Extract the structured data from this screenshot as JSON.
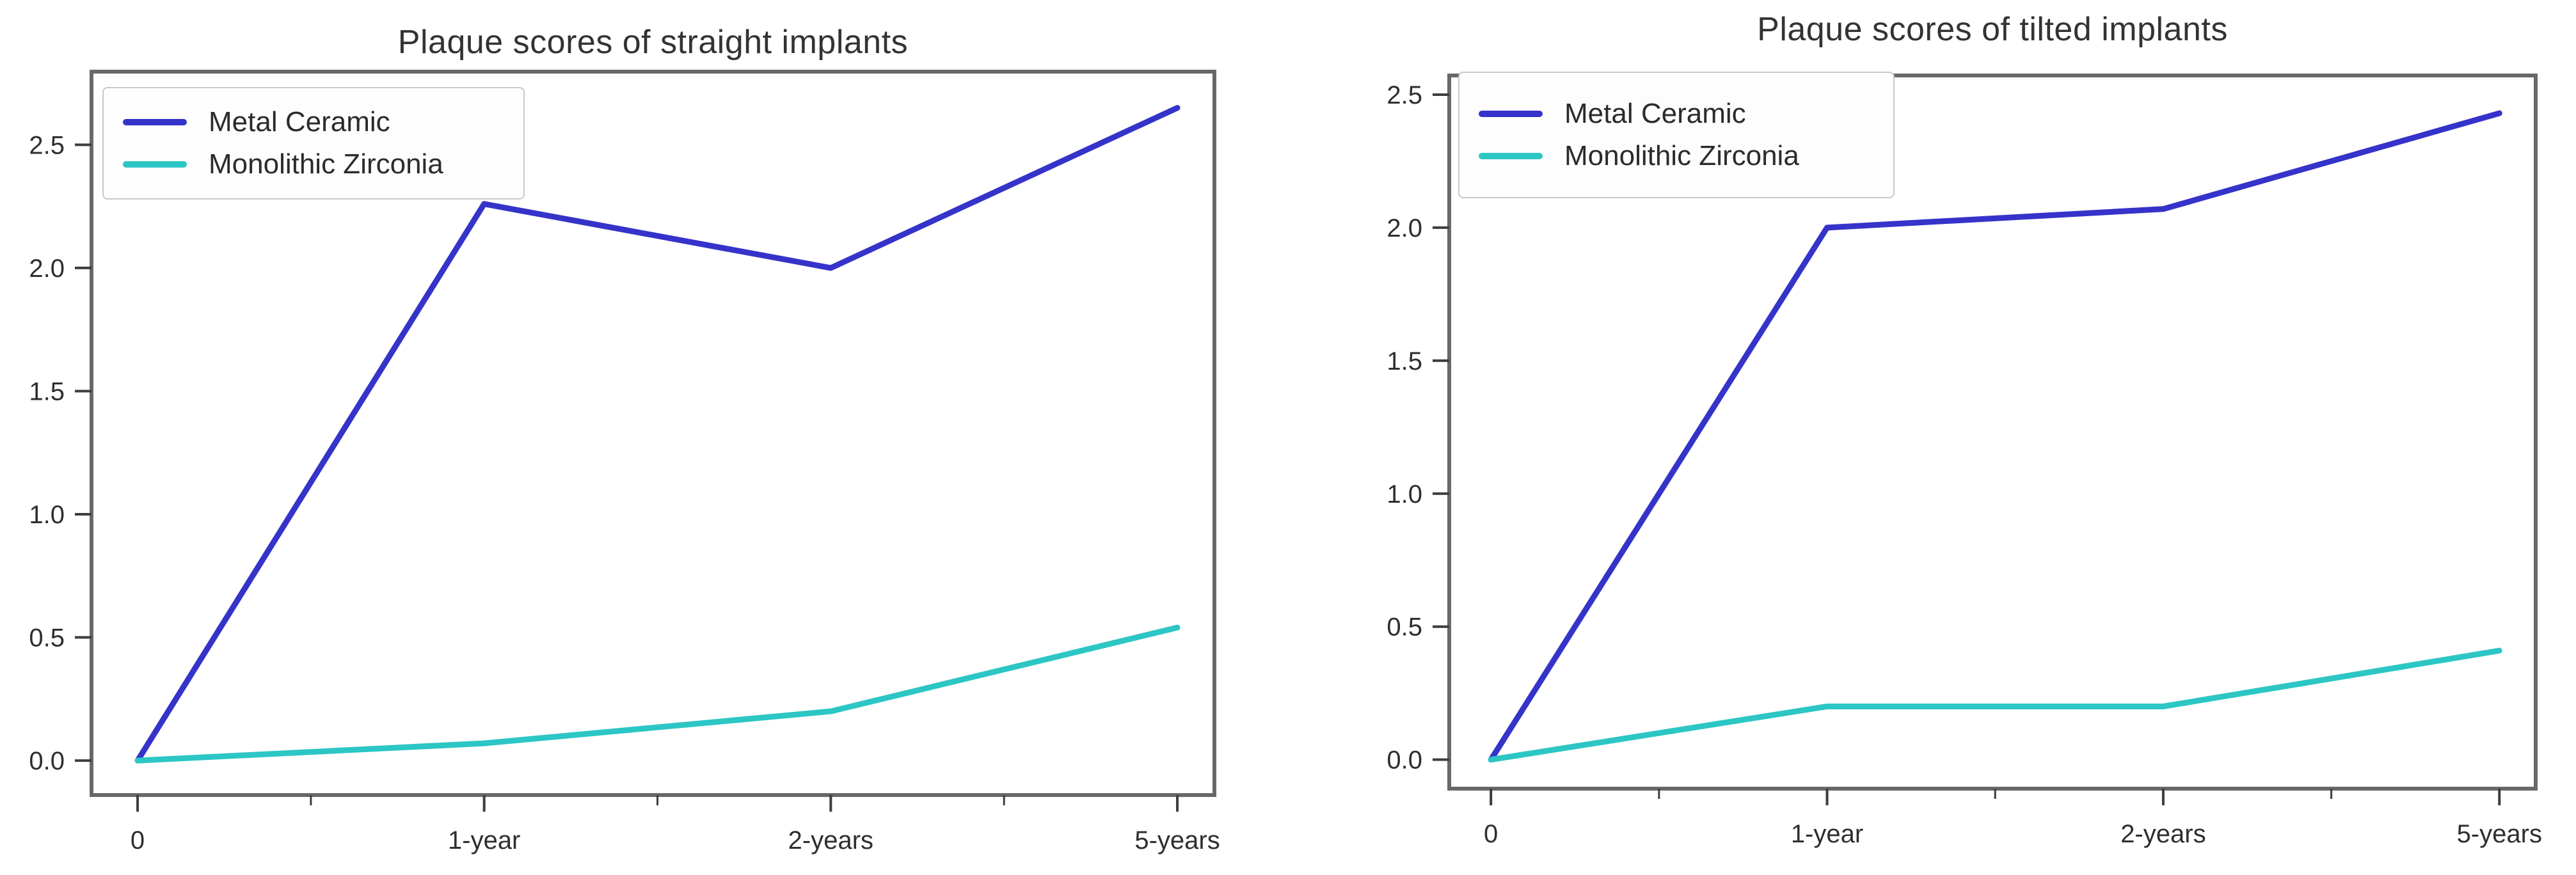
{
  "page": {
    "background": "#ffffff"
  },
  "style": {
    "frame_color": "#686868",
    "tick_color": "#3d3d3d",
    "label_color": "#2e2e2e",
    "title_color": "#333333",
    "legend_border": "#c9c9c9",
    "legend_bg": "#fdfdfd"
  },
  "chart_data": [
    {
      "type": "line",
      "title": "Plaque scores of straight implants",
      "categories": [
        "0",
        "1-year",
        "2-years",
        "5-years"
      ],
      "series": [
        {
          "name": "Metal Ceramic",
          "color": "#3533c9",
          "values": [
            0.0,
            2.26,
            2.0,
            2.65
          ]
        },
        {
          "name": "Monolithic Zirconia",
          "color": "#2cc6c4",
          "values": [
            0.0,
            0.07,
            0.2,
            0.54
          ]
        }
      ],
      "yticks": [
        0.0,
        0.5,
        1.0,
        1.5,
        2.0,
        2.5
      ],
      "ytick_labels": [
        "0.0",
        "0.5",
        "1.0",
        "1.5",
        "2.0",
        "2.5"
      ],
      "minor_xticks": [
        0.5,
        1.5,
        2.5
      ],
      "xlim": [
        -0.133,
        3.107
      ],
      "ylim": [
        -0.14,
        2.797
      ],
      "grid": false,
      "legend_position": "upper left"
    },
    {
      "type": "line",
      "title": "Plaque scores of tilted implants",
      "categories": [
        "0",
        "1-year",
        "2-years",
        "5-years"
      ],
      "series": [
        {
          "name": "Metal Ceramic",
          "color": "#3533c9",
          "values": [
            0.0,
            2.0,
            2.07,
            2.43
          ]
        },
        {
          "name": "Monolithic Zirconia",
          "color": "#2cc6c4",
          "values": [
            0.0,
            0.2,
            0.2,
            0.41
          ]
        }
      ],
      "yticks": [
        0.0,
        0.5,
        1.0,
        1.5,
        2.0,
        2.5
      ],
      "ytick_labels": [
        "0.0",
        "0.5",
        "1.0",
        "1.5",
        "2.0",
        "2.5"
      ],
      "minor_xticks": [
        0.5,
        1.5,
        2.5
      ],
      "xlim": [
        -0.124,
        3.108
      ],
      "ylim": [
        -0.109,
        2.572
      ],
      "grid": false,
      "legend_position": "upper left"
    }
  ]
}
